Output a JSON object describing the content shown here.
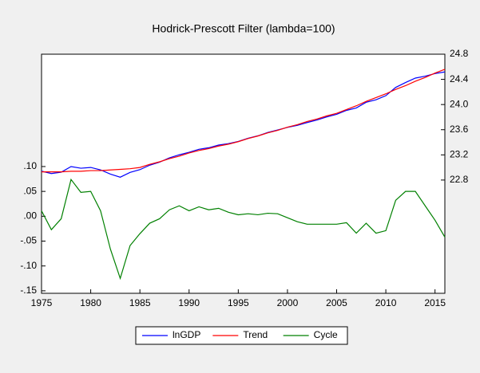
{
  "chart_data": {
    "type": "line",
    "title": "Hodrick-Prescott Filter (lambda=100)",
    "x": [
      1975,
      1976,
      1977,
      1978,
      1979,
      1980,
      1981,
      1982,
      1983,
      1984,
      1985,
      1986,
      1987,
      1988,
      1989,
      1990,
      1991,
      1992,
      1993,
      1994,
      1995,
      1996,
      1997,
      1998,
      1999,
      2000,
      2001,
      2002,
      2003,
      2004,
      2005,
      2006,
      2007,
      2008,
      2009,
      2010,
      2011,
      2012,
      2013,
      2014,
      2015,
      2016
    ],
    "series": [
      {
        "name": "lnGDP",
        "color": "#0000ff",
        "axis": "y2",
        "values": [
          22.941,
          22.903,
          22.925,
          23.014,
          22.988,
          23.0,
          22.961,
          22.894,
          22.845,
          22.921,
          22.965,
          23.036,
          23.085,
          23.153,
          23.201,
          23.241,
          23.289,
          23.313,
          23.356,
          23.378,
          23.413,
          23.465,
          23.503,
          23.556,
          23.595,
          23.637,
          23.669,
          23.714,
          23.754,
          23.804,
          23.844,
          23.907,
          23.946,
          24.036,
          24.076,
          24.141,
          24.272,
          24.35,
          24.42,
          24.451,
          24.492,
          24.518
        ]
      },
      {
        "name": "Trend",
        "color": "#ff0000",
        "axis": "y2",
        "values": [
          22.93,
          22.93,
          22.93,
          22.94,
          22.94,
          22.95,
          22.95,
          22.96,
          22.97,
          22.98,
          23.0,
          23.05,
          23.09,
          23.14,
          23.18,
          23.23,
          23.27,
          23.3,
          23.34,
          23.37,
          23.41,
          23.46,
          23.5,
          23.55,
          23.59,
          23.64,
          23.68,
          23.73,
          23.77,
          23.82,
          23.86,
          23.92,
          23.98,
          24.05,
          24.11,
          24.17,
          24.24,
          24.3,
          24.37,
          24.43,
          24.5,
          24.56
        ]
      },
      {
        "name": "Cycle",
        "color": "#008000",
        "axis": "y",
        "values": [
          0.011,
          -0.027,
          -0.005,
          0.074,
          0.048,
          0.05,
          0.011,
          -0.066,
          -0.125,
          -0.059,
          -0.035,
          -0.014,
          -0.005,
          0.013,
          0.021,
          0.011,
          0.019,
          0.013,
          0.016,
          0.008,
          0.003,
          0.005,
          0.003,
          0.006,
          0.005,
          -0.003,
          -0.011,
          -0.016,
          -0.016,
          -0.016,
          -0.016,
          -0.013,
          -0.034,
          -0.014,
          -0.034,
          -0.029,
          0.032,
          0.05,
          0.05,
          0.021,
          -0.008,
          -0.042
        ]
      }
    ],
    "xlim": [
      1975,
      2016
    ],
    "xticks": [
      1975,
      1980,
      1985,
      1990,
      1995,
      2000,
      2005,
      2010,
      2015
    ],
    "ylim": [
      -0.155,
      0.326
    ],
    "yticks": [
      {
        "value": 0.1,
        "label": ".10"
      },
      {
        "value": 0.05,
        "label": ".05"
      },
      {
        "value": 0,
        "label": ".00"
      },
      {
        "value": -0.05,
        "label": "-.05"
      },
      {
        "value": -0.1,
        "label": "-.10"
      },
      {
        "value": -0.15,
        "label": "-.15"
      }
    ],
    "y2lim": [
      21.0,
      24.8
    ],
    "y2ticks": [
      24.8,
      24.4,
      {
        "value": 24.0,
        "label": "24.0"
      },
      23.6,
      23.2,
      22.8
    ],
    "legend": "bottom"
  }
}
